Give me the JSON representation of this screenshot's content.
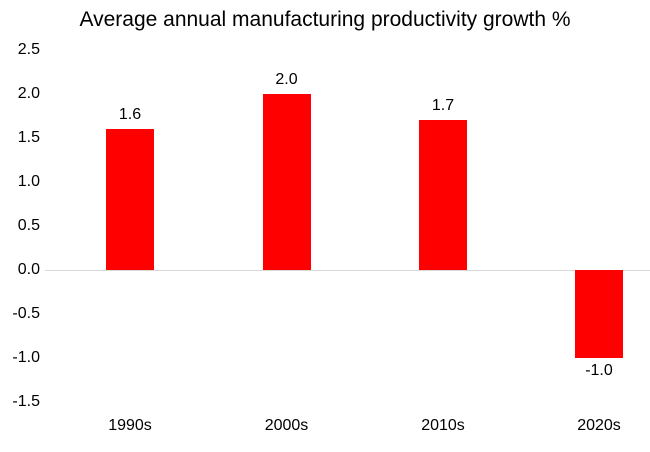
{
  "chart_data": {
    "type": "bar",
    "title": "Average annual manufacturing productivity growth %",
    "categories": [
      "1990s",
      "2000s",
      "2010s",
      "2020s"
    ],
    "values": [
      1.6,
      2.0,
      1.7,
      -1.0
    ],
    "data_labels": [
      "1.6",
      "2.0",
      "1.7",
      "-1.0"
    ],
    "xlabel": "",
    "ylabel": "",
    "y_ticks": [
      2.5,
      2.0,
      1.5,
      1.0,
      0.5,
      0.0,
      -0.5,
      -1.0,
      -1.5
    ],
    "y_tick_labels": [
      "2.5",
      "2.0",
      "1.5",
      "1.0",
      "0.5",
      "0.0",
      "-0.5",
      "-1.0",
      "-1.5"
    ],
    "ylim": [
      -1.5,
      2.5
    ],
    "grid": false,
    "legend": false,
    "colors": {
      "bar": "#FF0000",
      "zero_line": "#D9D9D9",
      "text": "#000000",
      "background": "#FFFFFF"
    }
  }
}
